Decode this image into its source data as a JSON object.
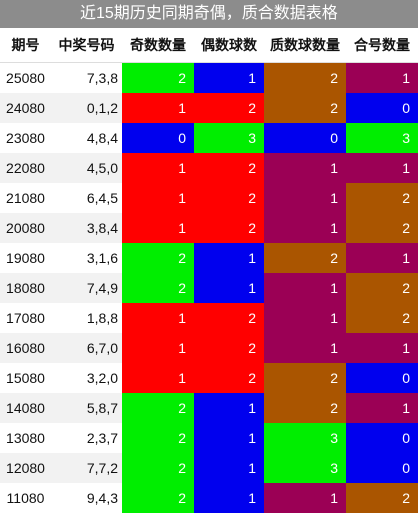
{
  "title": "近15期历史同期奇偶，质合数据表格",
  "headers": [
    "期号",
    "中奖号码",
    "奇数数量",
    "偶数球数",
    "质数球数量",
    "合号数量"
  ],
  "colors": {
    "green": "#00ee00",
    "blue": "#0000ee",
    "red": "#ff0000",
    "brown": "#aa5500",
    "purple": "#9b0055"
  },
  "rows": [
    {
      "issue": "25080",
      "nums": "7,3,8",
      "vals": [
        "2",
        "1",
        "2",
        "1"
      ],
      "bg": [
        "green",
        "blue",
        "brown",
        "purple"
      ]
    },
    {
      "issue": "24080",
      "nums": "0,1,2",
      "vals": [
        "1",
        "2",
        "2",
        "0"
      ],
      "bg": [
        "red",
        "red",
        "brown",
        "blue"
      ]
    },
    {
      "issue": "23080",
      "nums": "4,8,4",
      "vals": [
        "0",
        "3",
        "0",
        "3"
      ],
      "bg": [
        "blue",
        "green",
        "blue",
        "green"
      ]
    },
    {
      "issue": "22080",
      "nums": "4,5,0",
      "vals": [
        "1",
        "2",
        "1",
        "1"
      ],
      "bg": [
        "red",
        "red",
        "purple",
        "purple"
      ]
    },
    {
      "issue": "21080",
      "nums": "6,4,5",
      "vals": [
        "1",
        "2",
        "1",
        "2"
      ],
      "bg": [
        "red",
        "red",
        "purple",
        "brown"
      ]
    },
    {
      "issue": "20080",
      "nums": "3,8,4",
      "vals": [
        "1",
        "2",
        "1",
        "2"
      ],
      "bg": [
        "red",
        "red",
        "purple",
        "brown"
      ]
    },
    {
      "issue": "19080",
      "nums": "3,1,6",
      "vals": [
        "2",
        "1",
        "2",
        "1"
      ],
      "bg": [
        "green",
        "blue",
        "brown",
        "purple"
      ]
    },
    {
      "issue": "18080",
      "nums": "7,4,9",
      "vals": [
        "2",
        "1",
        "1",
        "2"
      ],
      "bg": [
        "green",
        "blue",
        "purple",
        "brown"
      ]
    },
    {
      "issue": "17080",
      "nums": "1,8,8",
      "vals": [
        "1",
        "2",
        "1",
        "2"
      ],
      "bg": [
        "red",
        "red",
        "purple",
        "brown"
      ]
    },
    {
      "issue": "16080",
      "nums": "6,7,0",
      "vals": [
        "1",
        "2",
        "1",
        "1"
      ],
      "bg": [
        "red",
        "red",
        "purple",
        "purple"
      ]
    },
    {
      "issue": "15080",
      "nums": "3,2,0",
      "vals": [
        "1",
        "2",
        "2",
        "0"
      ],
      "bg": [
        "red",
        "red",
        "brown",
        "blue"
      ]
    },
    {
      "issue": "14080",
      "nums": "5,8,7",
      "vals": [
        "2",
        "1",
        "2",
        "1"
      ],
      "bg": [
        "green",
        "blue",
        "brown",
        "purple"
      ]
    },
    {
      "issue": "13080",
      "nums": "2,3,7",
      "vals": [
        "2",
        "1",
        "3",
        "0"
      ],
      "bg": [
        "green",
        "blue",
        "green",
        "blue"
      ]
    },
    {
      "issue": "12080",
      "nums": "7,7,2",
      "vals": [
        "2",
        "1",
        "3",
        "0"
      ],
      "bg": [
        "green",
        "blue",
        "green",
        "blue"
      ]
    },
    {
      "issue": "11080",
      "nums": "9,4,3",
      "vals": [
        "2",
        "1",
        "1",
        "2"
      ],
      "bg": [
        "green",
        "blue",
        "purple",
        "brown"
      ]
    }
  ]
}
